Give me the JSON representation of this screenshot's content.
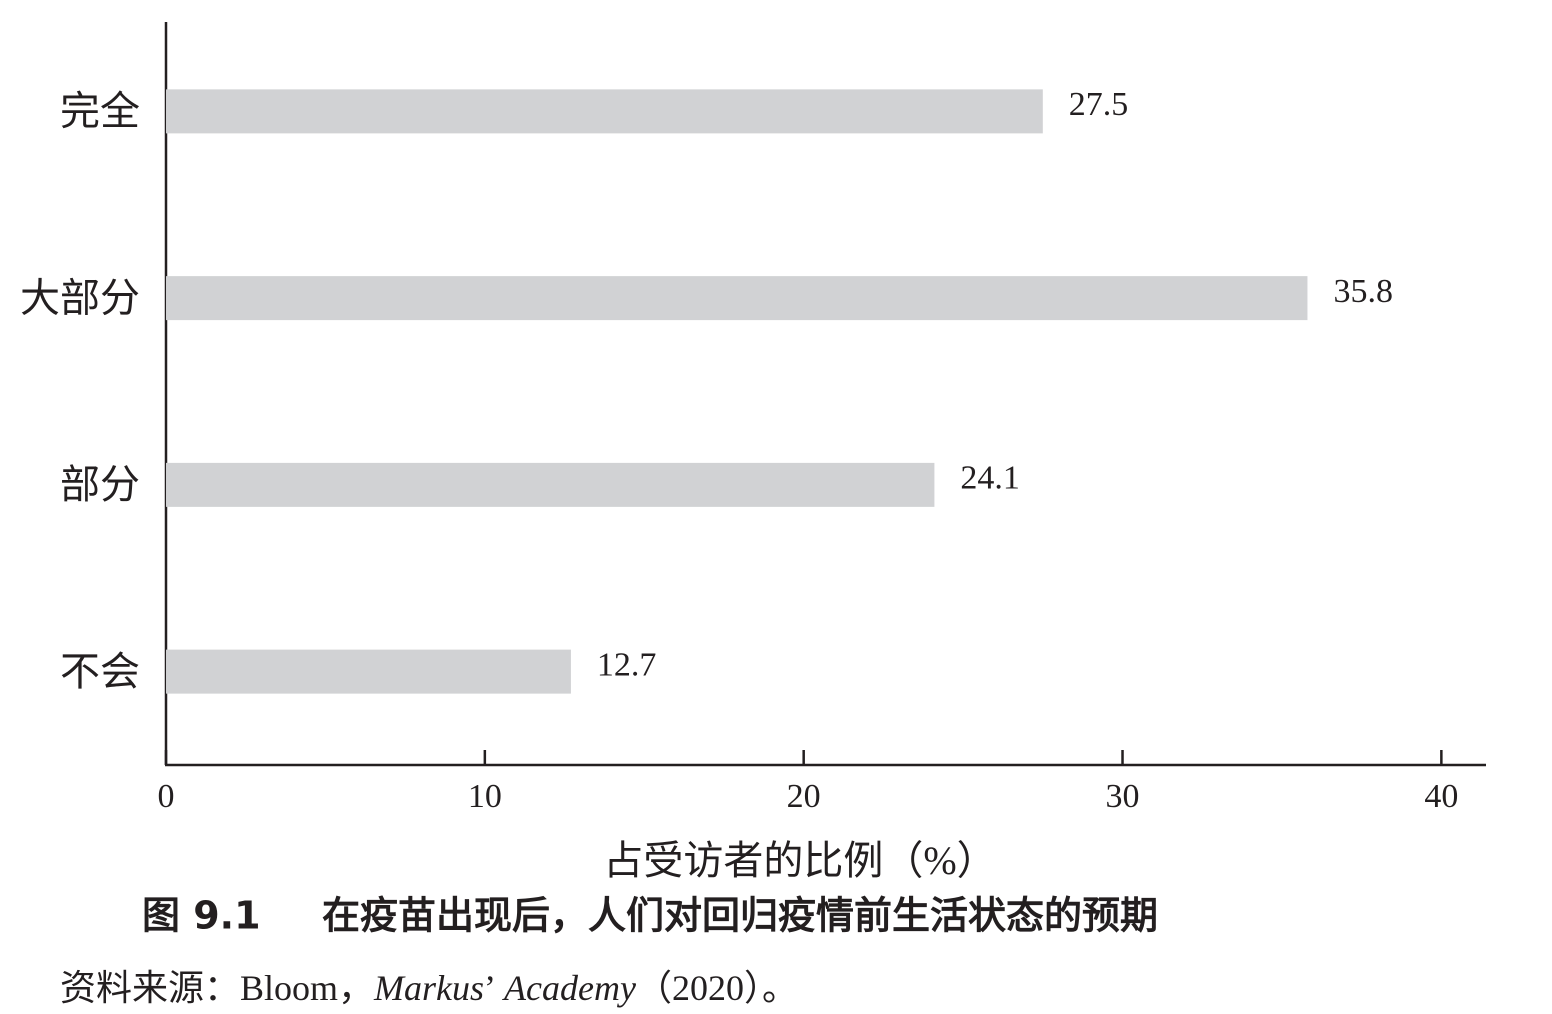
{
  "chart_data": {
    "type": "bar",
    "orientation": "horizontal",
    "categories": [
      "完全",
      "大部分",
      "部分",
      "不会"
    ],
    "values": [
      27.5,
      35.8,
      24.1,
      12.7
    ],
    "color": "#d1d2d4",
    "xlim": [
      0,
      41.4
    ],
    "xticks": [
      0,
      10,
      20,
      30,
      40
    ],
    "xlabel": "占受访者的比例（%）",
    "figure_number": "图 9.1",
    "title": "在疫苗出现后，人们对回归疫情前生活状态的预期",
    "source": [
      {
        "text": "资料来源：Bloom，",
        "italic": false
      },
      {
        "text": "Markus",
        "italic": true
      },
      {
        "text": "’",
        "italic": false
      },
      {
        "text": "Academy",
        "italic": true
      },
      {
        "text": "（2020）。",
        "italic": false
      }
    ]
  }
}
